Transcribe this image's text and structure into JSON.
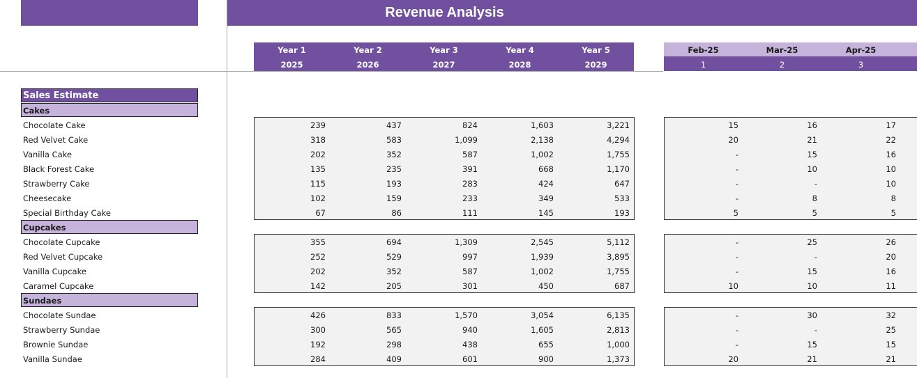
{
  "title": "Revenue Analysis",
  "colors": {
    "accent": "#7150a0",
    "accent_light": "#c5b3dc",
    "box_bg": "#f2f2f2"
  },
  "years": [
    {
      "label": "Year 1",
      "year": "2025"
    },
    {
      "label": "Year 2",
      "year": "2026"
    },
    {
      "label": "Year 3",
      "year": "2027"
    },
    {
      "label": "Year 4",
      "year": "2028"
    },
    {
      "label": "Year 5",
      "year": "2029"
    }
  ],
  "months": [
    {
      "label": "Feb-25",
      "index": "1"
    },
    {
      "label": "Mar-25",
      "index": "2"
    },
    {
      "label": "Apr-25",
      "index": "3"
    }
  ],
  "section_title": "Sales Estimate",
  "categories": [
    {
      "name": "Cakes",
      "rows": [
        {
          "label": "Chocolate Cake",
          "years": [
            "239",
            "437",
            "824",
            "1,603",
            "3,221"
          ],
          "months": [
            "15",
            "16",
            "17"
          ]
        },
        {
          "label": "Red Velvet Cake",
          "years": [
            "318",
            "583",
            "1,099",
            "2,138",
            "4,294"
          ],
          "months": [
            "20",
            "21",
            "22"
          ]
        },
        {
          "label": "Vanilla Cake",
          "years": [
            "202",
            "352",
            "587",
            "1,002",
            "1,755"
          ],
          "months": [
            "-",
            "15",
            "16"
          ]
        },
        {
          "label": "Black Forest Cake",
          "years": [
            "135",
            "235",
            "391",
            "668",
            "1,170"
          ],
          "months": [
            "-",
            "10",
            "10"
          ]
        },
        {
          "label": "Strawberry Cake",
          "years": [
            "115",
            "193",
            "283",
            "424",
            "647"
          ],
          "months": [
            "-",
            "-",
            "10"
          ]
        },
        {
          "label": "Cheesecake",
          "years": [
            "102",
            "159",
            "233",
            "349",
            "533"
          ],
          "months": [
            "-",
            "8",
            "8"
          ]
        },
        {
          "label": "Special Birthday Cake",
          "years": [
            "67",
            "86",
            "111",
            "145",
            "193"
          ],
          "months": [
            "5",
            "5",
            "5"
          ]
        }
      ]
    },
    {
      "name": "Cupcakes",
      "rows": [
        {
          "label": "Chocolate Cupcake",
          "years": [
            "355",
            "694",
            "1,309",
            "2,545",
            "5,112"
          ],
          "months": [
            "-",
            "25",
            "26"
          ]
        },
        {
          "label": "Red Velvet Cupcake",
          "years": [
            "252",
            "529",
            "997",
            "1,939",
            "3,895"
          ],
          "months": [
            "-",
            "-",
            "20"
          ]
        },
        {
          "label": "Vanilla Cupcake",
          "years": [
            "202",
            "352",
            "587",
            "1,002",
            "1,755"
          ],
          "months": [
            "-",
            "15",
            "16"
          ]
        },
        {
          "label": "Caramel Cupcake",
          "years": [
            "142",
            "205",
            "301",
            "450",
            "687"
          ],
          "months": [
            "10",
            "10",
            "11"
          ]
        }
      ]
    },
    {
      "name": "Sundaes",
      "rows": [
        {
          "label": "Chocolate Sundae",
          "years": [
            "426",
            "833",
            "1,570",
            "3,054",
            "6,135"
          ],
          "months": [
            "-",
            "30",
            "32"
          ]
        },
        {
          "label": "Strawberry Sundae",
          "years": [
            "300",
            "565",
            "940",
            "1,605",
            "2,813"
          ],
          "months": [
            "-",
            "-",
            "25"
          ]
        },
        {
          "label": "Brownie Sundae",
          "years": [
            "192",
            "298",
            "438",
            "655",
            "1,000"
          ],
          "months": [
            "-",
            "15",
            "15"
          ]
        },
        {
          "label": "Vanilla Sundae",
          "years": [
            "284",
            "409",
            "601",
            "900",
            "1,373"
          ],
          "months": [
            "20",
            "21",
            "21"
          ]
        }
      ]
    }
  ]
}
